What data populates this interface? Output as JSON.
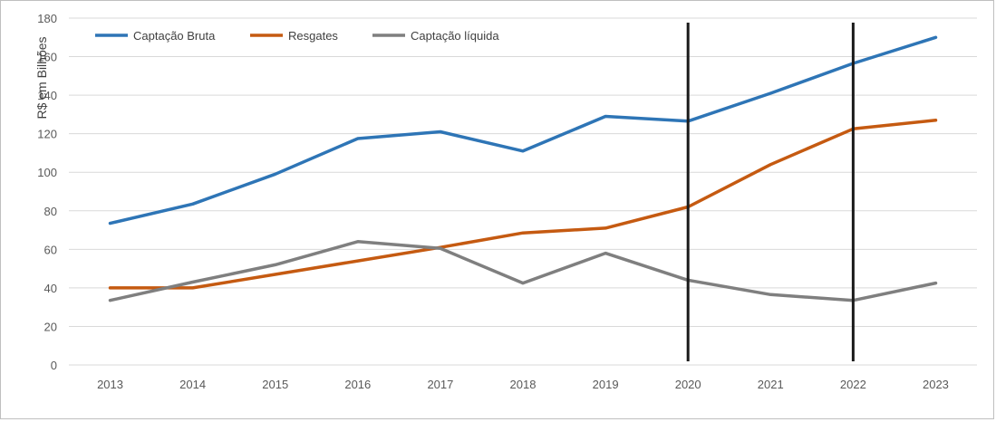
{
  "chart_data": {
    "type": "line",
    "title": "",
    "xlabel": "",
    "ylabel": "R$ em Bilhões",
    "ylim": [
      0,
      180
    ],
    "yticks": [
      0,
      20,
      40,
      60,
      80,
      100,
      120,
      140,
      160,
      180
    ],
    "grid": true,
    "legend_position": "top-left",
    "categories": [
      "2013",
      "2014",
      "2015",
      "2016",
      "2017",
      "2018",
      "2019",
      "2020",
      "2021",
      "2022",
      "2023"
    ],
    "series": [
      {
        "name": "Captação Bruta",
        "color": "#2e75b6",
        "values": [
          73.5,
          83.5,
          99,
          117.5,
          121,
          111,
          129,
          126.5,
          141,
          156.5,
          170
        ]
      },
      {
        "name": "Resgates",
        "color": "#c55a11",
        "values": [
          40,
          40,
          47,
          54,
          61,
          68.5,
          71,
          82,
          104,
          122.5,
          127
        ]
      },
      {
        "name": "Captação líquida",
        "color": "#7f7f7f",
        "values": [
          33.5,
          43,
          52,
          64,
          60.5,
          42.5,
          58,
          44,
          36.5,
          33.5,
          42.5
        ]
      }
    ],
    "vertical_markers": [
      "2020",
      "2022"
    ],
    "marker_color": "#1a1a1a"
  }
}
